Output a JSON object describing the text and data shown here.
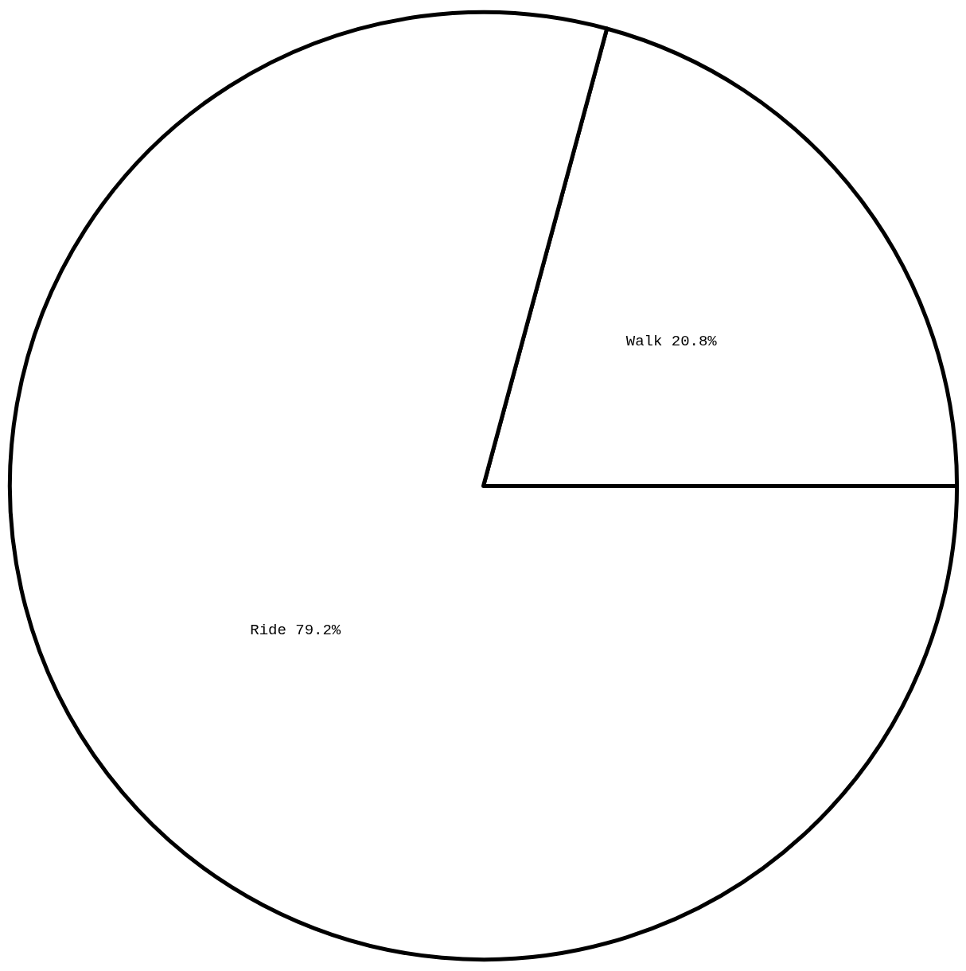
{
  "chart_data": {
    "type": "pie",
    "categories": [
      "Walk",
      "Ride"
    ],
    "values": [
      20.8,
      79.2
    ],
    "colors": [
      "#ffffff",
      "#ffffff"
    ],
    "value_labels": [
      "20.8%",
      "79.2%"
    ],
    "legend": false
  }
}
